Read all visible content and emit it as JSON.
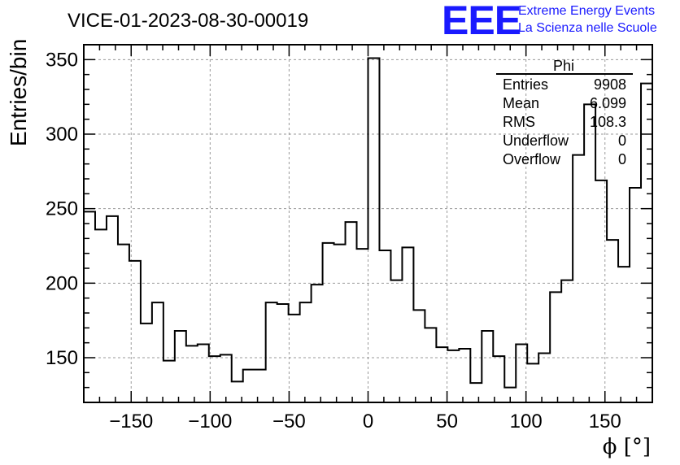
{
  "header": {
    "run_title": "VICE-01-2023-08-30-00019"
  },
  "logo": {
    "mark": "EEE",
    "line1": "Extreme Energy Events",
    "line2": "La Scienza nelle Scuole",
    "color": "#1a1aff"
  },
  "stats_box": {
    "title": "Phi",
    "rows": [
      {
        "label": "Entries",
        "value": "9908"
      },
      {
        "label": "Mean",
        "value": "6.099"
      },
      {
        "label": "RMS",
        "value": "108.3"
      },
      {
        "label": "Underflow",
        "value": "0"
      },
      {
        "label": "Overflow",
        "value": "0"
      }
    ]
  },
  "chart_data": {
    "type": "histogram",
    "title": "VICE-01-2023-08-30-00019",
    "xlabel": "ϕ [°]",
    "ylabel": "Entries/bin",
    "xlim": [
      -180,
      180
    ],
    "ylim": [
      120,
      360
    ],
    "grid": true,
    "bin_width": 7.2,
    "bin_edges_start": -180,
    "values": [
      248,
      236,
      245,
      226,
      215,
      173,
      187,
      148,
      168,
      158,
      159,
      151,
      152,
      134,
      142,
      142,
      187,
      186,
      179,
      187,
      199,
      227,
      226,
      241,
      223,
      351,
      222,
      202,
      224,
      182,
      170,
      157,
      155,
      156,
      133,
      168,
      151,
      130,
      159,
      146,
      153,
      194,
      202,
      286,
      320,
      269,
      229,
      211,
      264,
      334
    ],
    "x_ticks": [
      -150,
      -100,
      -50,
      0,
      50,
      100,
      150
    ],
    "x_tick_labels": [
      "−150",
      "−100",
      "−50",
      "0",
      "50",
      "100",
      "150"
    ],
    "y_ticks": [
      150,
      200,
      250,
      300,
      350
    ],
    "y_tick_labels": [
      "150",
      "200",
      "250",
      "300",
      "350"
    ],
    "line_color": "#000000"
  }
}
